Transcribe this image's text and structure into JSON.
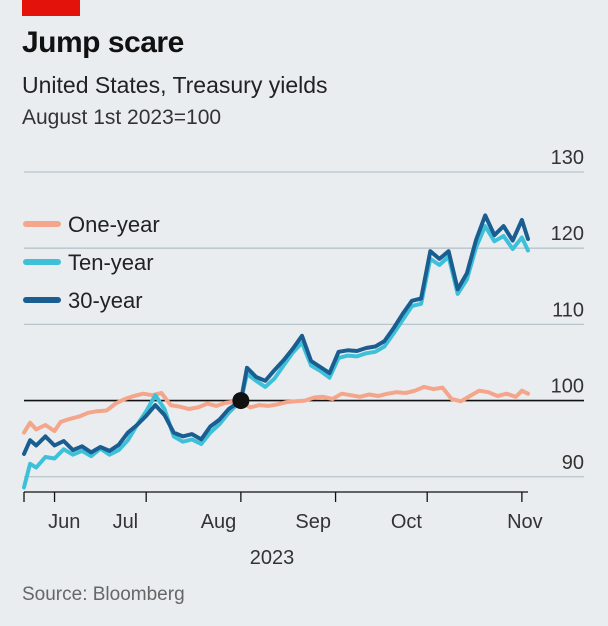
{
  "header": {
    "title": "Jump scare",
    "subtitle": "United States, Treasury yields",
    "note": "August 1st 2023=100"
  },
  "source": "Source: Bloomberg",
  "colors": {
    "accent_tag": "#e3120b",
    "one_year": "#f4a58a",
    "ten_year": "#3ec1d8",
    "thirty_year": "#1a5e91",
    "grid": "#b7c4cc",
    "baseline": "#111111"
  },
  "chart_data": {
    "type": "line",
    "title": "Jump scare",
    "subtitle": "United States, Treasury yields",
    "index_note": "August 1st 2023=100",
    "x_range": [
      "2023-05-22",
      "2023-11-03"
    ],
    "ylim": [
      88,
      130
    ],
    "y_ticks": [
      90,
      100,
      110,
      120,
      130
    ],
    "y_axis_side": "right",
    "grid": true,
    "baseline": 100,
    "x_ticks": [
      "Jun",
      "Jul",
      "Aug",
      "Sep",
      "Oct",
      "Nov"
    ],
    "x_tick_dates": [
      "2023-06-01",
      "2023-07-01",
      "2023-08-01",
      "2023-09-01",
      "2023-10-01",
      "2023-11-01"
    ],
    "x_year_label": "2023",
    "legend_position": "top-left",
    "marker": {
      "x": "2023-08-01",
      "y": 100
    },
    "series": [
      {
        "name": "One-year",
        "color": "#f4a58a",
        "points": [
          [
            "2023-05-22",
            95.8
          ],
          [
            "2023-05-24",
            97.1
          ],
          [
            "2023-05-26",
            96.2
          ],
          [
            "2023-05-29",
            96.8
          ],
          [
            "2023-06-01",
            96.0
          ],
          [
            "2023-06-03",
            97.2
          ],
          [
            "2023-06-06",
            97.6
          ],
          [
            "2023-06-09",
            97.9
          ],
          [
            "2023-06-12",
            98.4
          ],
          [
            "2023-06-15",
            98.6
          ],
          [
            "2023-06-18",
            98.7
          ],
          [
            "2023-06-21",
            99.6
          ],
          [
            "2023-06-24",
            100.2
          ],
          [
            "2023-06-27",
            100.6
          ],
          [
            "2023-06-30",
            100.9
          ],
          [
            "2023-07-03",
            100.7
          ],
          [
            "2023-07-06",
            101.0
          ],
          [
            "2023-07-09",
            99.4
          ],
          [
            "2023-07-12",
            99.2
          ],
          [
            "2023-07-15",
            98.9
          ],
          [
            "2023-07-18",
            99.1
          ],
          [
            "2023-07-21",
            99.6
          ],
          [
            "2023-07-24",
            99.3
          ],
          [
            "2023-07-27",
            99.7
          ],
          [
            "2023-08-01",
            100.0
          ],
          [
            "2023-08-04",
            99.1
          ],
          [
            "2023-08-07",
            99.4
          ],
          [
            "2023-08-10",
            99.3
          ],
          [
            "2023-08-13",
            99.5
          ],
          [
            "2023-08-16",
            99.8
          ],
          [
            "2023-08-19",
            99.9
          ],
          [
            "2023-08-22",
            100.0
          ],
          [
            "2023-08-25",
            100.4
          ],
          [
            "2023-08-28",
            100.5
          ],
          [
            "2023-08-31",
            100.2
          ],
          [
            "2023-09-03",
            100.9
          ],
          [
            "2023-09-06",
            100.7
          ],
          [
            "2023-09-09",
            100.5
          ],
          [
            "2023-09-12",
            100.8
          ],
          [
            "2023-09-15",
            100.6
          ],
          [
            "2023-09-18",
            100.9
          ],
          [
            "2023-09-21",
            101.1
          ],
          [
            "2023-09-24",
            101.0
          ],
          [
            "2023-09-27",
            101.3
          ],
          [
            "2023-09-30",
            101.8
          ],
          [
            "2023-10-03",
            101.5
          ],
          [
            "2023-10-06",
            101.7
          ],
          [
            "2023-10-09",
            100.2
          ],
          [
            "2023-10-12",
            99.9
          ],
          [
            "2023-10-15",
            100.6
          ],
          [
            "2023-10-18",
            101.3
          ],
          [
            "2023-10-21",
            101.1
          ],
          [
            "2023-10-24",
            100.6
          ],
          [
            "2023-10-27",
            100.9
          ],
          [
            "2023-10-30",
            100.5
          ],
          [
            "2023-11-01",
            101.3
          ],
          [
            "2023-11-03",
            100.9
          ]
        ]
      },
      {
        "name": "Ten-year",
        "color": "#3ec1d8",
        "points": [
          [
            "2023-05-22",
            88.6
          ],
          [
            "2023-05-24",
            91.7
          ],
          [
            "2023-05-26",
            91.2
          ],
          [
            "2023-05-29",
            92.6
          ],
          [
            "2023-06-01",
            92.4
          ],
          [
            "2023-06-04",
            93.6
          ],
          [
            "2023-06-07",
            92.9
          ],
          [
            "2023-06-10",
            93.4
          ],
          [
            "2023-06-13",
            92.7
          ],
          [
            "2023-06-16",
            93.7
          ],
          [
            "2023-06-19",
            92.9
          ],
          [
            "2023-06-22",
            93.5
          ],
          [
            "2023-06-25",
            94.8
          ],
          [
            "2023-06-28",
            96.8
          ],
          [
            "2023-07-01",
            98.6
          ],
          [
            "2023-07-04",
            100.7
          ],
          [
            "2023-07-07",
            98.9
          ],
          [
            "2023-07-10",
            95.3
          ],
          [
            "2023-07-13",
            94.6
          ],
          [
            "2023-07-16",
            94.9
          ],
          [
            "2023-07-19",
            94.3
          ],
          [
            "2023-07-22",
            95.8
          ],
          [
            "2023-07-25",
            96.9
          ],
          [
            "2023-07-28",
            98.4
          ],
          [
            "2023-08-01",
            100.0
          ],
          [
            "2023-08-03",
            103.5
          ],
          [
            "2023-08-06",
            102.6
          ],
          [
            "2023-08-09",
            101.8
          ],
          [
            "2023-08-12",
            102.9
          ],
          [
            "2023-08-15",
            104.6
          ],
          [
            "2023-08-18",
            106.3
          ],
          [
            "2023-08-21",
            107.6
          ],
          [
            "2023-08-24",
            104.6
          ],
          [
            "2023-08-27",
            103.9
          ],
          [
            "2023-08-30",
            103.0
          ],
          [
            "2023-09-02",
            105.6
          ],
          [
            "2023-09-05",
            105.9
          ],
          [
            "2023-09-08",
            105.8
          ],
          [
            "2023-09-11",
            106.2
          ],
          [
            "2023-09-14",
            106.4
          ],
          [
            "2023-09-17",
            107.1
          ],
          [
            "2023-09-20",
            108.8
          ],
          [
            "2023-09-23",
            110.6
          ],
          [
            "2023-09-26",
            112.4
          ],
          [
            "2023-09-29",
            112.7
          ],
          [
            "2023-10-02",
            118.6
          ],
          [
            "2023-10-05",
            117.8
          ],
          [
            "2023-10-08",
            118.9
          ],
          [
            "2023-10-11",
            114.0
          ],
          [
            "2023-10-14",
            115.9
          ],
          [
            "2023-10-17",
            120.1
          ],
          [
            "2023-10-20",
            122.9
          ],
          [
            "2023-10-23",
            120.9
          ],
          [
            "2023-10-26",
            121.6
          ],
          [
            "2023-10-29",
            119.9
          ],
          [
            "2023-11-01",
            121.4
          ],
          [
            "2023-11-03",
            119.7
          ]
        ]
      },
      {
        "name": "30-year",
        "color": "#1a5e91",
        "points": [
          [
            "2023-05-22",
            93.0
          ],
          [
            "2023-05-24",
            94.8
          ],
          [
            "2023-05-26",
            94.1
          ],
          [
            "2023-05-29",
            95.3
          ],
          [
            "2023-06-01",
            94.1
          ],
          [
            "2023-06-04",
            94.7
          ],
          [
            "2023-06-07",
            93.5
          ],
          [
            "2023-06-10",
            94.0
          ],
          [
            "2023-06-13",
            93.2
          ],
          [
            "2023-06-16",
            93.9
          ],
          [
            "2023-06-19",
            93.4
          ],
          [
            "2023-06-22",
            94.2
          ],
          [
            "2023-06-25",
            95.8
          ],
          [
            "2023-06-28",
            96.8
          ],
          [
            "2023-07-01",
            98.0
          ],
          [
            "2023-07-04",
            99.4
          ],
          [
            "2023-07-07",
            98.1
          ],
          [
            "2023-07-10",
            95.8
          ],
          [
            "2023-07-13",
            95.3
          ],
          [
            "2023-07-16",
            95.6
          ],
          [
            "2023-07-19",
            94.9
          ],
          [
            "2023-07-22",
            96.6
          ],
          [
            "2023-07-25",
            97.5
          ],
          [
            "2023-07-28",
            98.9
          ],
          [
            "2023-08-01",
            100.0
          ],
          [
            "2023-08-03",
            104.3
          ],
          [
            "2023-08-06",
            103.1
          ],
          [
            "2023-08-09",
            102.6
          ],
          [
            "2023-08-12",
            104.0
          ],
          [
            "2023-08-15",
            105.3
          ],
          [
            "2023-08-18",
            106.8
          ],
          [
            "2023-08-21",
            108.5
          ],
          [
            "2023-08-24",
            105.2
          ],
          [
            "2023-08-27",
            104.4
          ],
          [
            "2023-08-30",
            103.6
          ],
          [
            "2023-09-02",
            106.4
          ],
          [
            "2023-09-05",
            106.6
          ],
          [
            "2023-09-08",
            106.5
          ],
          [
            "2023-09-11",
            106.9
          ],
          [
            "2023-09-14",
            107.1
          ],
          [
            "2023-09-17",
            107.8
          ],
          [
            "2023-09-20",
            109.5
          ],
          [
            "2023-09-23",
            111.4
          ],
          [
            "2023-09-26",
            113.1
          ],
          [
            "2023-09-29",
            113.4
          ],
          [
            "2023-10-02",
            119.6
          ],
          [
            "2023-10-05",
            118.6
          ],
          [
            "2023-10-08",
            119.6
          ],
          [
            "2023-10-11",
            114.6
          ],
          [
            "2023-10-14",
            116.7
          ],
          [
            "2023-10-17",
            121.1
          ],
          [
            "2023-10-20",
            124.3
          ],
          [
            "2023-10-23",
            121.7
          ],
          [
            "2023-10-26",
            122.9
          ],
          [
            "2023-10-29",
            121.0
          ],
          [
            "2023-11-01",
            123.7
          ],
          [
            "2023-11-03",
            121.2
          ]
        ]
      }
    ]
  }
}
